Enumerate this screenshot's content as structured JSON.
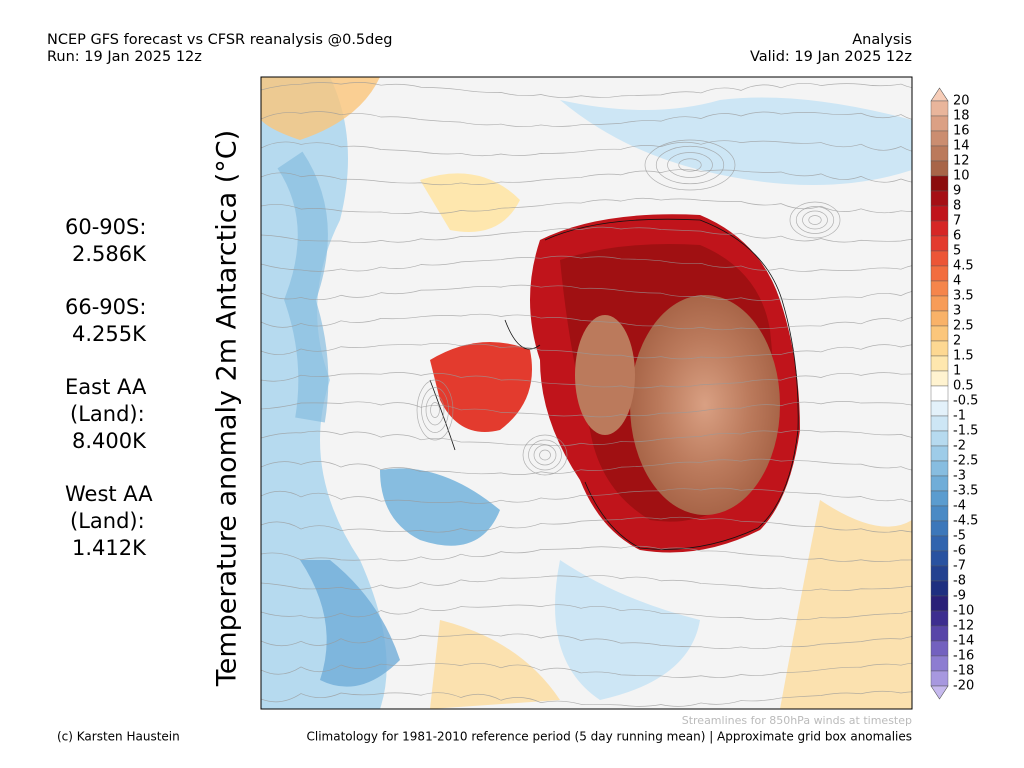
{
  "header": {
    "title": "NCEP GFS forecast vs CFSR reanalysis @0.5deg",
    "run": "Run: 19 Jan 2025 12z",
    "mode": "Analysis",
    "valid": "Valid: 19 Jan 2025 12z"
  },
  "axis_title": "Temperature anomaly 2m Antarctica (°C)",
  "stats": [
    {
      "lines": [
        "60-90S:",
        "2.586K"
      ]
    },
    {
      "lines": [
        "66-90S:",
        "4.255K"
      ]
    },
    {
      "lines": [
        "East AA",
        "(Land):",
        "8.400K"
      ]
    },
    {
      "lines": [
        "West AA",
        "(Land):",
        "1.412K"
      ]
    }
  ],
  "colorbar": {
    "labels": [
      20,
      18,
      16,
      14,
      12,
      10,
      9,
      8,
      7,
      6,
      5,
      4.5,
      4,
      3.5,
      3,
      2.5,
      2,
      1.5,
      1,
      0.5,
      -0.5,
      -1,
      -1.5,
      -2,
      -2.5,
      -3,
      -3.5,
      -4,
      -4.5,
      -5,
      -6,
      -7,
      -8,
      -9,
      -10,
      -12,
      -14,
      -16,
      -18,
      -20
    ],
    "colors": [
      "#f7cdb8",
      "#e9b59b",
      "#dba084",
      "#cb8d70",
      "#bb7a5c",
      "#a86548",
      "#8b0d0d",
      "#a50f15",
      "#c0141b",
      "#d62626",
      "#e33b2e",
      "#ec5536",
      "#f26d3f",
      "#f5854b",
      "#f79c58",
      "#f9b268",
      "#fbc67b",
      "#fdd892",
      "#fee7ae",
      "#fff3d0",
      "#ffffff",
      "#e3f1fa",
      "#cde6f5",
      "#b6daef",
      "#9ecce8",
      "#87bde0",
      "#70add8",
      "#5b9ccf",
      "#4a8ac5",
      "#3c77ba",
      "#3164ae",
      "#2952a0",
      "#234190",
      "#1e2f80",
      "#2a2078",
      "#3d2d8f",
      "#5845a8",
      "#7361bf",
      "#8d7dd1",
      "#a798df",
      "#c6b9ee"
    ]
  },
  "footer": {
    "credit": "(c) Karsten Haustein",
    "streamlines": "Streamlines for 850hPa winds at timestep",
    "climatology": "Climatology for 1981-2010 reference period (5 day running mean) | Approximate grid box anomalies"
  }
}
